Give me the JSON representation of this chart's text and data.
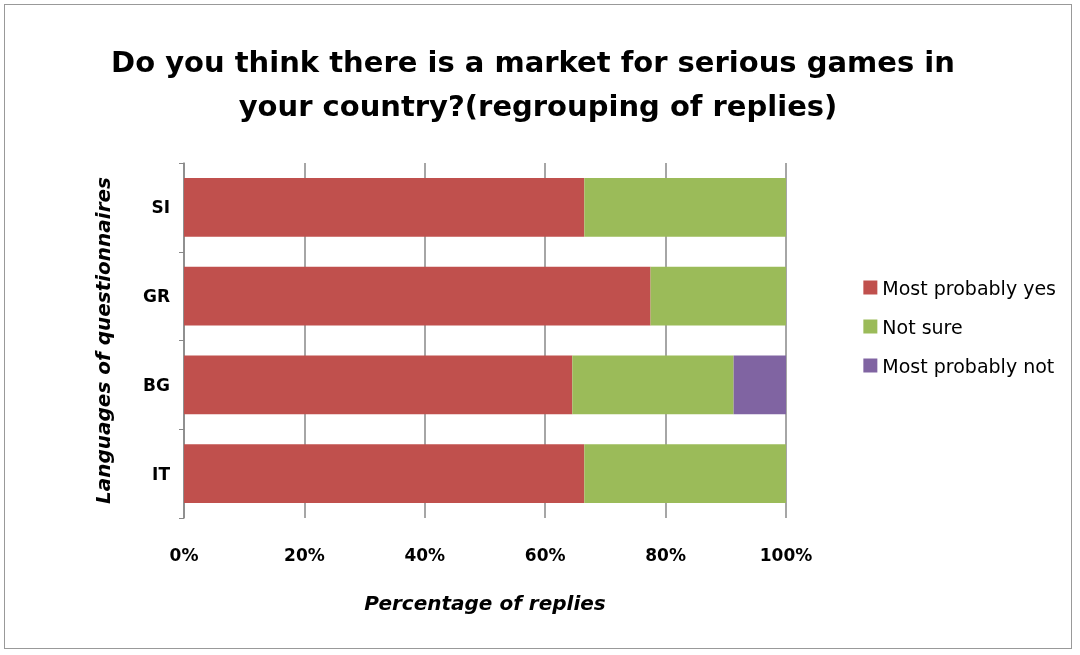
{
  "chart_data": {
    "type": "bar",
    "orientation": "horizontal",
    "stacked": true,
    "title": "Do you think there is a market for serious games in your country?(regrouping of replies)",
    "xlabel": "Percentage of replies",
    "ylabel": "Languages of questionnaires",
    "categories": [
      "SI",
      "GR",
      "BG",
      "IT"
    ],
    "series": [
      {
        "name": "Most probably yes",
        "color": "#c0504d",
        "values": [
          66.5,
          77.5,
          64.5,
          66.5
        ]
      },
      {
        "name": "Not sure",
        "color": "#9bbb59",
        "values": [
          33.5,
          22.5,
          26.8,
          33.5
        ]
      },
      {
        "name": "Most probably not",
        "color": "#8064a2",
        "values": [
          0,
          0,
          8.7,
          0
        ]
      }
    ],
    "xlim": [
      0,
      100
    ],
    "xticks": [
      {
        "value": 0,
        "label": "0%"
      },
      {
        "value": 20,
        "label": "20%"
      },
      {
        "value": 40,
        "label": "40%"
      },
      {
        "value": 60,
        "label": "60%"
      },
      {
        "value": 80,
        "label": "80%"
      },
      {
        "value": 100,
        "label": "100%"
      }
    ],
    "grid": "x",
    "legend": "right"
  }
}
